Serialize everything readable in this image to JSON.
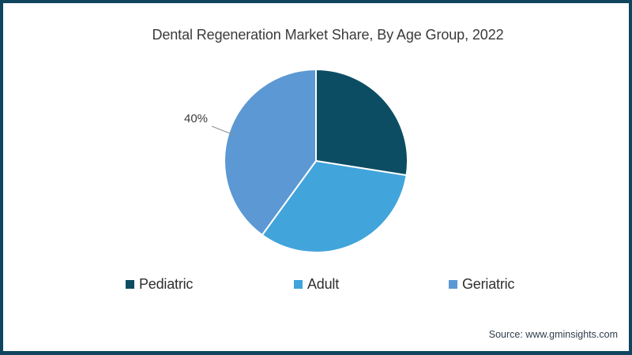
{
  "title": "Dental Regeneration Market Share, By Age Group, 2022",
  "source_text": "Source: www.gminsights.com",
  "annotation": {
    "text": "40%",
    "target_slice": "Geriatric"
  },
  "legend": [
    {
      "label": "Pediatric",
      "color": "#0c4d63"
    },
    {
      "label": "Adult",
      "color": "#41a4db"
    },
    {
      "label": "Geriatric",
      "color": "#5c98d3"
    }
  ],
  "colors": {
    "frame_border": "#0f455e",
    "leader_line": "#8f8f8f",
    "slice_separator": "#ffffff",
    "title_text": "#3a3a3a",
    "source_text": "#2f3e4d"
  },
  "chart_data": {
    "type": "pie",
    "title": "Dental Regeneration Market Share, By Age Group, 2022",
    "categories": [
      "Pediatric",
      "Adult",
      "Geriatric"
    ],
    "values": [
      27.5,
      32.5,
      40
    ],
    "unit": "%",
    "colors": [
      "#0c4d63",
      "#41a4db",
      "#5c98d3"
    ],
    "start_angle_deg": 0,
    "direction": "clockwise",
    "data_labels_shown": [
      {
        "category": "Geriatric",
        "text": "40%"
      }
    ],
    "legend_position": "bottom",
    "source": "Source: www.gminsights.com"
  }
}
